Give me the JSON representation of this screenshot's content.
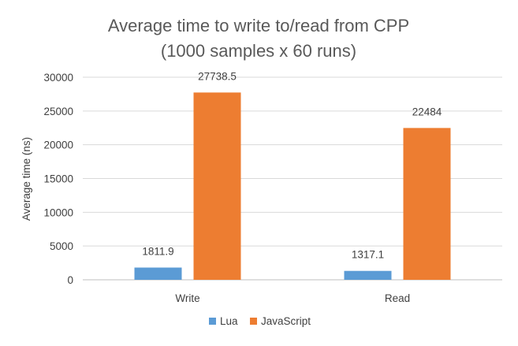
{
  "chart_data": {
    "type": "bar",
    "title": "Average time to write to/read from CPP",
    "subtitle": "(1000 samples x 60 runs)",
    "xlabel": "",
    "ylabel": "Average time (ns)",
    "categories": [
      "Write",
      "Read"
    ],
    "series": [
      {
        "name": "Lua",
        "values": [
          1811.9,
          1317.1
        ],
        "labels": [
          "1811.9",
          "1317.1"
        ],
        "color": "#5b9bd5"
      },
      {
        "name": "JavaScript",
        "values": [
          27738.5,
          22484
        ],
        "labels": [
          "27738.5",
          "22484"
        ],
        "color": "#ed7d31"
      }
    ],
    "ylim": [
      0,
      30000
    ],
    "yticks": [
      "0",
      "5000",
      "10000",
      "15000",
      "20000",
      "25000",
      "30000"
    ],
    "grid": true,
    "legend": "bottom"
  }
}
